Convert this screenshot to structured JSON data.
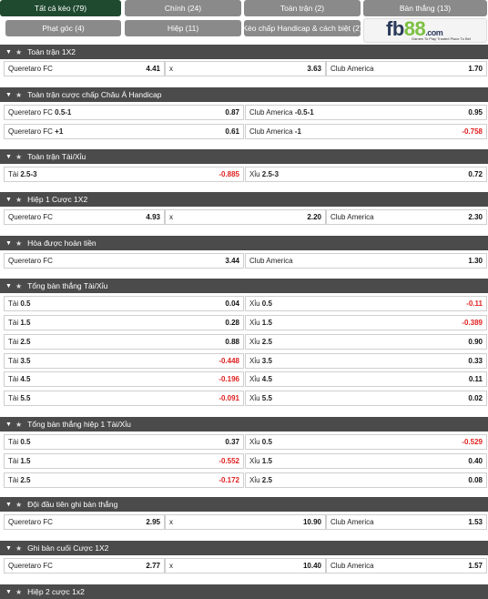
{
  "tabs": [
    {
      "label": "Tất cả kèo (79)",
      "active": true
    },
    {
      "label": "Chính (24)"
    },
    {
      "label": "Toàn trận (2)"
    },
    {
      "label": "Bàn thắng (13)"
    },
    {
      "label": "Phạt góc (4)"
    },
    {
      "label": "Hiệp (11)"
    },
    {
      "label": "Kèo chấp Handicap & cách biệt (2)"
    }
  ],
  "logo": {
    "text_fb": "fb",
    "text_88": "88",
    "suffix": ".com",
    "tagline": "Games To Play  Trusted Place To Bet"
  },
  "sections": [
    {
      "title": "Toàn trận 1X2",
      "rows": [
        [
          {
            "label": "Queretaro FC",
            "odd": "4.41"
          },
          {
            "label": "x",
            "odd": "3.63"
          },
          {
            "label": "Club America",
            "odd": "1.70"
          }
        ]
      ]
    },
    {
      "title": "Toàn trận cược chấp Châu Á Handicap",
      "rows": [
        [
          {
            "label": "Queretaro FC",
            "line": "0.5-1",
            "odd": "0.87"
          },
          {
            "label": "Club America",
            "line": "-0.5-1",
            "odd": "0.95"
          }
        ],
        [
          {
            "label": "Queretaro FC",
            "line": "+1",
            "odd": "0.61"
          },
          {
            "label": "Club America",
            "line": "-1",
            "odd": "-0.758"
          }
        ]
      ]
    },
    {
      "title": "Toàn trận Tài/Xỉu",
      "rows": [
        [
          {
            "label": "Tài",
            "line": "2.5-3",
            "odd": "-0.885"
          },
          {
            "label": "Xỉu",
            "line": "2.5-3",
            "odd": "0.72"
          }
        ]
      ]
    },
    {
      "title": "Hiệp 1 Cược 1X2",
      "rows": [
        [
          {
            "label": "Queretaro FC",
            "odd": "4.93"
          },
          {
            "label": "x",
            "odd": "2.20"
          },
          {
            "label": "Club America",
            "odd": "2.30"
          }
        ]
      ]
    },
    {
      "title": "Hòa được hoàn tiền",
      "rows": [
        [
          {
            "label": "Queretaro FC",
            "odd": "3.44"
          },
          {
            "label": "Club America",
            "odd": "1.30"
          }
        ]
      ]
    },
    {
      "title": "Tổng bàn thắng Tài/Xỉu",
      "rows": [
        [
          {
            "label": "Tài",
            "line": "0.5",
            "odd": "0.04"
          },
          {
            "label": "Xỉu",
            "line": "0.5",
            "odd": "-0.11"
          }
        ],
        [
          {
            "label": "Tài",
            "line": "1.5",
            "odd": "0.28"
          },
          {
            "label": "Xỉu",
            "line": "1.5",
            "odd": "-0.389"
          }
        ],
        [
          {
            "label": "Tài",
            "line": "2.5",
            "odd": "0.88"
          },
          {
            "label": "Xỉu",
            "line": "2.5",
            "odd": "0.90"
          }
        ],
        [
          {
            "label": "Tài",
            "line": "3.5",
            "odd": "-0.448"
          },
          {
            "label": "Xỉu",
            "line": "3.5",
            "odd": "0.33"
          }
        ],
        [
          {
            "label": "Tài",
            "line": "4.5",
            "odd": "-0.196"
          },
          {
            "label": "Xỉu",
            "line": "4.5",
            "odd": "0.11"
          }
        ],
        [
          {
            "label": "Tài",
            "line": "5.5",
            "odd": "-0.091"
          },
          {
            "label": "Xỉu",
            "line": "5.5",
            "odd": "0.02"
          }
        ]
      ]
    },
    {
      "title": "Tổng bàn thắng hiệp 1 Tài/Xỉu",
      "rows": [
        [
          {
            "label": "Tài",
            "line": "0.5",
            "odd": "0.37"
          },
          {
            "label": "Xỉu",
            "line": "0.5",
            "odd": "-0.529"
          }
        ],
        [
          {
            "label": "Tài",
            "line": "1.5",
            "odd": "-0.552"
          },
          {
            "label": "Xỉu",
            "line": "1.5",
            "odd": "0.40"
          }
        ],
        [
          {
            "label": "Tài",
            "line": "2.5",
            "odd": "-0.172"
          },
          {
            "label": "Xỉu",
            "line": "2.5",
            "odd": "0.08"
          }
        ]
      ]
    },
    {
      "title": "Đội đầu tiên ghi bàn thắng",
      "rows": [
        [
          {
            "label": "Queretaro FC",
            "odd": "2.95"
          },
          {
            "label": "x",
            "odd": "10.90"
          },
          {
            "label": "Club America",
            "odd": "1.53"
          }
        ]
      ]
    },
    {
      "title": "Ghi bàn cuối Cược 1X2",
      "rows": [
        [
          {
            "label": "Queretaro FC",
            "odd": "2.77"
          },
          {
            "label": "x",
            "odd": "10.40"
          },
          {
            "label": "Club America",
            "odd": "1.57"
          }
        ]
      ]
    },
    {
      "title": "Hiệp 2 cược 1x2",
      "rows": []
    }
  ]
}
